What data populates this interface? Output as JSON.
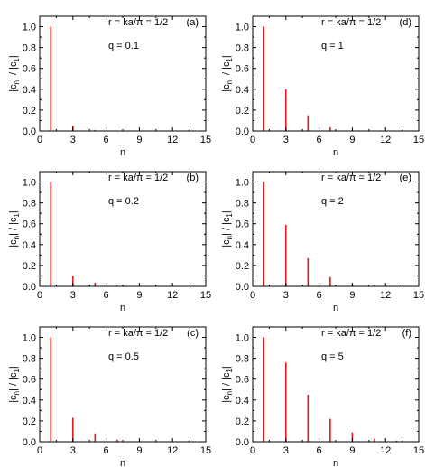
{
  "chart_data": [
    {
      "type": "bar",
      "panel": "(a)",
      "line1": "r = ka/π = 1/2",
      "line2": "q = 0.1",
      "ylabel_main": "|c",
      "ylabel_sub1": "n",
      "ylabel_mid": "| / |c",
      "ylabel_sub2": "1",
      "ylabel_end": "|",
      "xlabel": "n",
      "xlim": [
        0,
        15
      ],
      "ylim": [
        0,
        1.1
      ],
      "xticks": [
        "0",
        "3",
        "6",
        "9",
        "12",
        "15"
      ],
      "yticks": [
        "0.0",
        "0.2",
        "0.4",
        "0.6",
        "0.8",
        "1.0"
      ],
      "bar_color": "#e41a1c",
      "x": [
        1,
        3,
        5,
        7,
        9,
        11,
        13,
        15
      ],
      "values": [
        1.0,
        0.05,
        0.01,
        0.004,
        0.002,
        0.001,
        0.0005,
        0.0003
      ]
    },
    {
      "type": "bar",
      "panel": "(d)",
      "line1": "r = ka/π = 1/2",
      "line2": "q = 1",
      "ylabel_main": "|c",
      "ylabel_sub1": "n",
      "ylabel_mid": "| / |c",
      "ylabel_sub2": "1",
      "ylabel_end": "|",
      "xlabel": "n",
      "xlim": [
        0,
        15
      ],
      "ylim": [
        0,
        1.1
      ],
      "xticks": [
        "0",
        "3",
        "6",
        "9",
        "12",
        "15"
      ],
      "yticks": [
        "0.0",
        "0.2",
        "0.4",
        "0.6",
        "0.8",
        "1.0"
      ],
      "bar_color": "#e41a1c",
      "x": [
        1,
        3,
        5,
        7,
        9,
        11,
        13,
        15
      ],
      "values": [
        1.0,
        0.4,
        0.15,
        0.035,
        0.012,
        0.004,
        0.002,
        0.001
      ]
    },
    {
      "type": "bar",
      "panel": "(b)",
      "line1": "r = ka/π = 1/2",
      "line2": "q = 0.2",
      "ylabel_main": "|c",
      "ylabel_sub1": "n",
      "ylabel_mid": "| / |c",
      "ylabel_sub2": "1",
      "ylabel_end": "|",
      "xlabel": "n",
      "xlim": [
        0,
        15
      ],
      "ylim": [
        0,
        1.1
      ],
      "xticks": [
        "0",
        "3",
        "6",
        "9",
        "12",
        "15"
      ],
      "yticks": [
        "0.0",
        "0.2",
        "0.4",
        "0.6",
        "0.8",
        "1.0"
      ],
      "bar_color": "#e41a1c",
      "x": [
        1,
        3,
        5,
        7,
        9,
        11,
        13,
        15
      ],
      "values": [
        1.0,
        0.1,
        0.035,
        0.008,
        0.003,
        0.001,
        0.0005,
        0.0003
      ]
    },
    {
      "type": "bar",
      "panel": "(e)",
      "line1": "r = ka/π = 1/2",
      "line2": "q = 2",
      "ylabel_main": "|c",
      "ylabel_sub1": "n",
      "ylabel_mid": "| / |c",
      "ylabel_sub2": "1",
      "ylabel_end": "|",
      "xlabel": "n",
      "xlim": [
        0,
        15
      ],
      "ylim": [
        0,
        1.1
      ],
      "xticks": [
        "0",
        "3",
        "6",
        "9",
        "12",
        "15"
      ],
      "yticks": [
        "0.0",
        "0.2",
        "0.4",
        "0.6",
        "0.8",
        "1.0"
      ],
      "bar_color": "#e41a1c",
      "x": [
        1,
        3,
        5,
        7,
        9,
        11,
        13,
        15
      ],
      "values": [
        1.0,
        0.59,
        0.27,
        0.09,
        0.025,
        0.008,
        0.003,
        0.001
      ]
    },
    {
      "type": "bar",
      "panel": "(c)",
      "line1": "r = ka/π = 1/2",
      "line2": "q = 0.5",
      "ylabel_main": "|c",
      "ylabel_sub1": "n",
      "ylabel_mid": "| / |c",
      "ylabel_sub2": "1",
      "ylabel_end": "|",
      "xlabel": "n",
      "xlim": [
        0,
        15
      ],
      "ylim": [
        0,
        1.1
      ],
      "xticks": [
        "0",
        "3",
        "6",
        "9",
        "12",
        "15"
      ],
      "yticks": [
        "0.0",
        "0.2",
        "0.4",
        "0.6",
        "0.8",
        "1.0"
      ],
      "bar_color": "#e41a1c",
      "x": [
        1,
        3,
        5,
        7,
        9,
        11,
        13,
        15
      ],
      "values": [
        1.0,
        0.23,
        0.08,
        0.02,
        0.006,
        0.002,
        0.001,
        0.0005
      ]
    },
    {
      "type": "bar",
      "panel": "(f)",
      "line1": "r = ka/π = 1/2",
      "line2": "q = 5",
      "ylabel_main": "|c",
      "ylabel_sub1": "n",
      "ylabel_mid": "| / |c",
      "ylabel_sub2": "1",
      "ylabel_end": "|",
      "xlabel": "n",
      "xlim": [
        0,
        15
      ],
      "ylim": [
        0,
        1.1
      ],
      "xticks": [
        "0",
        "3",
        "6",
        "9",
        "12",
        "15"
      ],
      "yticks": [
        "0.0",
        "0.2",
        "0.4",
        "0.6",
        "0.8",
        "1.0"
      ],
      "bar_color": "#e41a1c",
      "x": [
        1,
        3,
        5,
        7,
        9,
        11,
        13,
        15
      ],
      "values": [
        1.0,
        0.76,
        0.45,
        0.22,
        0.09,
        0.03,
        0.01,
        0.004
      ]
    }
  ]
}
